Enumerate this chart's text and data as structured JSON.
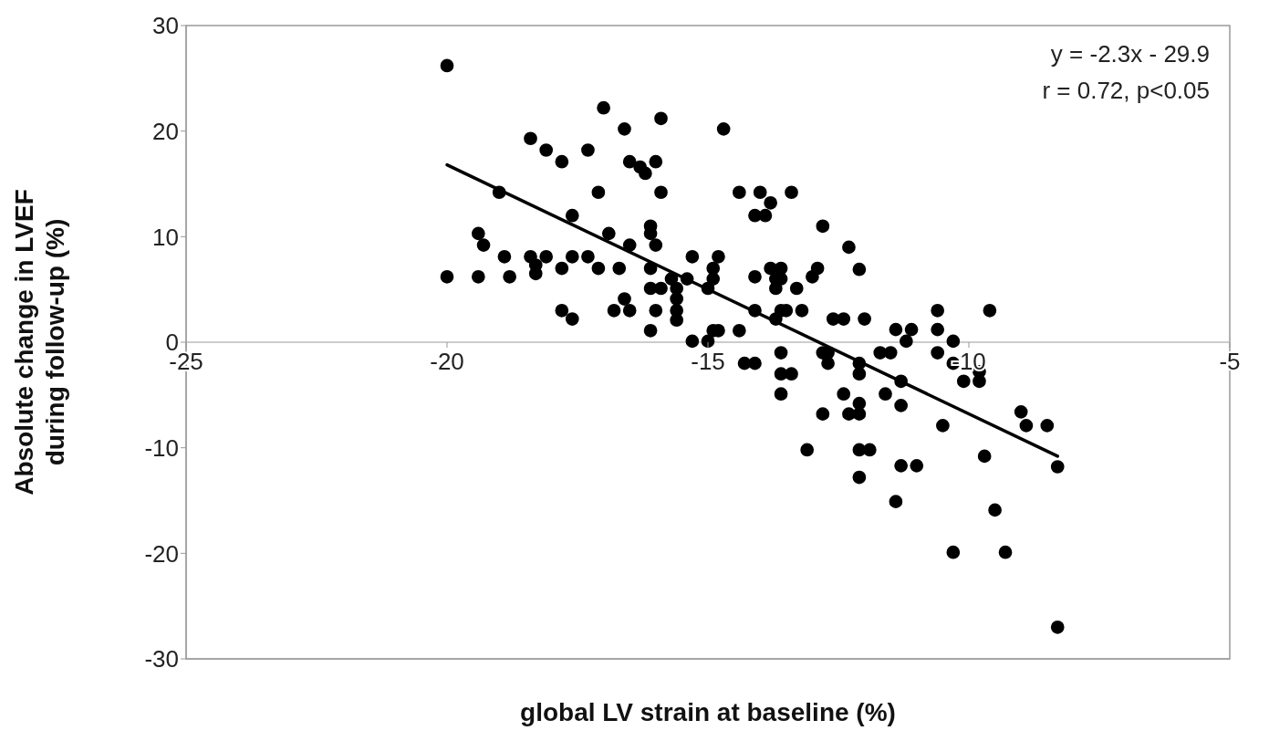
{
  "chart_data": {
    "type": "scatter",
    "xlabel": "global LV strain at baseline (%)",
    "ylabel": "Absolute change in LVEF during follow-up (%)",
    "xlim": [
      -25,
      -5
    ],
    "xticks": [
      -25,
      -20,
      -15,
      -10,
      -5
    ],
    "ylim": [
      -30,
      30
    ],
    "yticks": [
      -30,
      -20,
      -10,
      0,
      10,
      20,
      30
    ],
    "grid": false,
    "annotations": [
      "y = -2.3x - 29.9",
      "r = 0.72, p<0.05"
    ],
    "series": [
      {
        "color": "#000000",
        "marker": "circle",
        "x": [
          -20.0,
          -20.0,
          -19.0,
          -19.4,
          -19.3,
          -19.4,
          -18.9,
          -18.8,
          -18.4,
          -18.1,
          -17.8,
          -17.3,
          -18.4,
          -18.3,
          -18.3,
          -18.1,
          -17.8,
          -17.6,
          -17.3,
          -17.1,
          -16.7,
          -17.8,
          -17.6,
          -17.6,
          -17.1,
          -17.0,
          -16.9,
          -16.6,
          -15.9,
          -16.8,
          -16.6,
          -16.5,
          -16.5,
          -16.5,
          -16.3,
          -16.2,
          -16.0,
          -15.9,
          -16.1,
          -16.1,
          -16.0,
          -16.1,
          -16.1,
          -16.1,
          -16.0,
          -15.9,
          -15.7,
          -15.6,
          -15.4,
          -15.3,
          -15.6,
          -15.6,
          -15.6,
          -15.3,
          -15.0,
          -14.9,
          -14.9,
          -14.8,
          -14.9,
          -14.8,
          -15.0,
          -14.7,
          -14.4,
          -14.4,
          -14.1,
          -13.9,
          -14.0,
          -13.8,
          -13.4,
          -14.3,
          -14.1,
          -14.1,
          -14.1,
          -13.8,
          -13.6,
          -13.7,
          -13.7,
          -13.6,
          -13.7,
          -13.6,
          -13.6,
          -13.6,
          -13.4,
          -13.6,
          -13.3,
          -13.5,
          -13.2,
          -13.1,
          -13.0,
          -12.9,
          -12.8,
          -12.8,
          -12.8,
          -12.7,
          -12.7,
          -12.6,
          -12.4,
          -12.3,
          -12.4,
          -12.3,
          -12.1,
          -12.1,
          -12.1,
          -12.1,
          -12.0,
          -12.1,
          -12.1,
          -12.1,
          -11.9,
          -11.7,
          -11.5,
          -11.6,
          -11.4,
          -11.3,
          -11.4,
          -11.3,
          -11.3,
          -11.2,
          -11.1,
          -11.0,
          -10.6,
          -10.6,
          -10.6,
          -10.5,
          -10.3,
          -10.3,
          -10.3,
          -10.1,
          -9.8,
          -9.8,
          -9.7,
          -9.6,
          -9.5,
          -9.3,
          -9.0,
          -8.9,
          -8.5,
          -8.3,
          -8.3
        ],
        "values": [
          26.2,
          6.2,
          14.2,
          10.3,
          9.2,
          6.2,
          8.1,
          6.2,
          19.3,
          18.2,
          17.1,
          18.2,
          8.1,
          7.3,
          6.5,
          8.1,
          7.0,
          8.1,
          8.1,
          7.0,
          7.0,
          3.0,
          2.2,
          12.0,
          14.2,
          22.2,
          10.3,
          20.2,
          21.2,
          3.0,
          4.1,
          3.0,
          9.2,
          17.1,
          16.6,
          16.0,
          17.1,
          14.2,
          10.3,
          11.0,
          9.2,
          7.0,
          5.1,
          1.1,
          3.0,
          5.1,
          6.0,
          5.1,
          6.0,
          8.1,
          4.1,
          3.0,
          2.1,
          0.1,
          5.1,
          6.0,
          7.0,
          8.1,
          1.1,
          1.1,
          0.1,
          20.2,
          1.1,
          14.2,
          12.0,
          12.0,
          14.2,
          13.2,
          14.2,
          -2.0,
          -2.0,
          6.2,
          3.0,
          7.0,
          7.0,
          6.0,
          5.1,
          6.0,
          2.2,
          3.0,
          -1.0,
          -3.0,
          -3.0,
          -4.9,
          5.1,
          3.0,
          3.0,
          -10.2,
          6.2,
          7.0,
          11.0,
          -6.8,
          -1.0,
          -1.0,
          -2.0,
          2.2,
          2.2,
          9.0,
          -4.9,
          -6.8,
          -6.8,
          -2.0,
          -3.0,
          6.9,
          2.2,
          -10.2,
          -12.8,
          -5.8,
          -10.2,
          -1.0,
          -1.0,
          -4.9,
          1.2,
          -3.7,
          -15.1,
          -11.7,
          -6.0,
          0.1,
          1.2,
          -11.7,
          3.0,
          1.2,
          -1.0,
          -7.9,
          -2.0,
          0.1,
          -19.9,
          -3.7,
          -2.8,
          -3.7,
          -10.8,
          3.0,
          -15.9,
          -19.9,
          -6.6,
          -7.9,
          -7.9,
          -11.8,
          -27.0
        ]
      },
      {
        "type": "line",
        "color": "#000000",
        "marker": "none",
        "line_style": "solid",
        "x": [
          -20.0,
          -8.3
        ],
        "values": [
          16.8,
          -10.8
        ]
      }
    ]
  }
}
